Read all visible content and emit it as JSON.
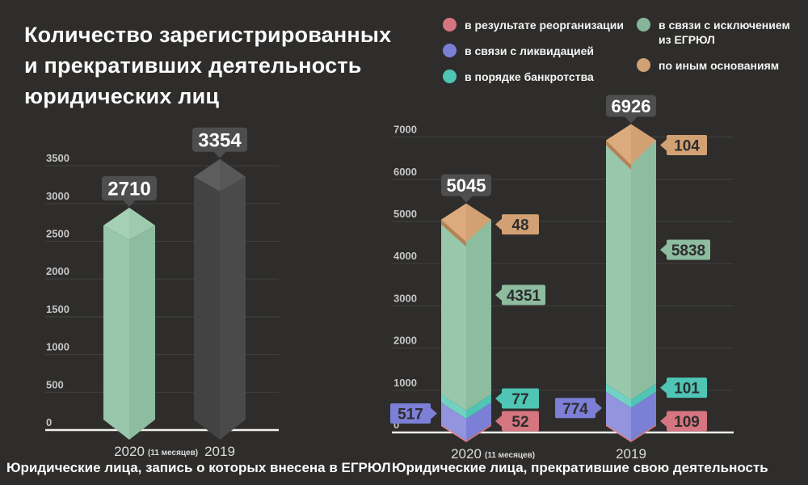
{
  "title": {
    "lines": [
      "Количество зарегистрированных",
      "и прекративших деятельность",
      "юридических лиц"
    ]
  },
  "legend": {
    "items": [
      {
        "label": "в результате реорганизации",
        "color": "#d4757f"
      },
      {
        "label": "в связи с ликвидацией",
        "color": "#7c7fd6"
      },
      {
        "label": "в порядке банкротства",
        "color": "#4ec5b5"
      },
      {
        "label": "в связи с исключением из ЕГРЮЛ",
        "color": "#87b59c"
      },
      {
        "label": "по иным основаниям",
        "color": "#d2a173"
      }
    ]
  },
  "colors": {
    "background": "#2e2d2b",
    "gridline": "#3f3f3f",
    "baseline": "#f0efed",
    "callout_bg": "#4e4e4e",
    "callout_text": "#ffffff",
    "value_text": "#2d2d2d",
    "axis_text": "#c6c6c6"
  },
  "chart_data": [
    {
      "type": "bar",
      "caption": "Юридические лица, запись о которых внесена в ЕГРЮЛ",
      "categories": [
        "2020",
        "2019"
      ],
      "category_notes": [
        "(11 месяцев)",
        ""
      ],
      "values": [
        2710,
        3354
      ],
      "value_labels": [
        "2710",
        "3354"
      ],
      "bar_colors": [
        "#8dbc9f",
        "#4a4a4a"
      ],
      "bar_side_colors": [
        "#99c7ab",
        "#434343"
      ],
      "bar_cap_colors": [
        "#9ecaad",
        "#575757"
      ],
      "ylim": [
        0,
        3500
      ],
      "yticks": [
        0,
        500,
        1000,
        1500,
        2000,
        2500,
        3000,
        3500
      ],
      "grid": true,
      "legend_position": "none"
    },
    {
      "type": "stacked-bar",
      "caption": "Юридические лица, прекратившие свою деятельность",
      "categories": [
        "2020",
        "2019"
      ],
      "category_notes": [
        "(11 месяцев)",
        ""
      ],
      "totals": [
        5045,
        6926
      ],
      "total_labels": [
        "5045",
        "6926"
      ],
      "series": [
        {
          "name": "в результате реорганизации",
          "color": "#d4757f",
          "side_color": "#de8a93",
          "values": [
            52,
            109
          ],
          "label_side": "right"
        },
        {
          "name": "в связи с ликвидацией",
          "color": "#7c7fd6",
          "side_color": "#9294de",
          "values": [
            517,
            774
          ],
          "label_side": "left"
        },
        {
          "name": "в порядке банкротства",
          "color": "#4ec5b5",
          "side_color": "#72d1c3",
          "values": [
            77,
            101
          ],
          "label_side": "right"
        },
        {
          "name": "в связи с исключением из ЕГРЮЛ",
          "color": "#8dbc9f",
          "side_color": "#99c7ab",
          "values": [
            4351,
            5838
          ],
          "label_side": "right"
        },
        {
          "name": "по иным основаниям",
          "color": "#d2a173",
          "side_color": "#dcb083",
          "values": [
            48,
            104
          ],
          "label_side": "right"
        }
      ],
      "ylim": [
        0,
        7000
      ],
      "yticks": [
        0,
        1000,
        2000,
        3000,
        4000,
        5000,
        6000,
        7000
      ],
      "grid": true,
      "legend_position": "top-right"
    }
  ]
}
